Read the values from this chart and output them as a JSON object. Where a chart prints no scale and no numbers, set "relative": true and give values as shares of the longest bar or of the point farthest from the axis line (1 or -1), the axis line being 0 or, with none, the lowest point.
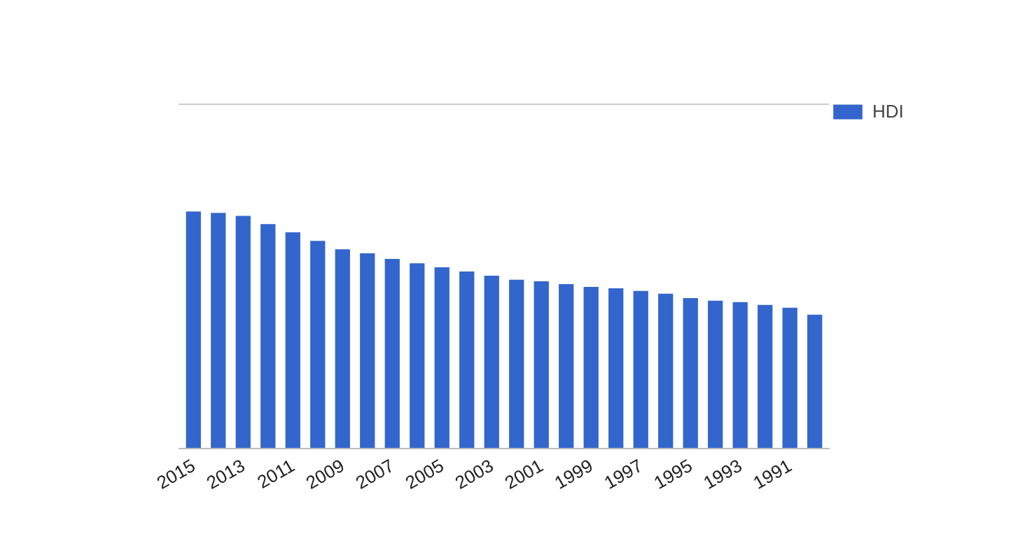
{
  "chart_data": {
    "type": "bar",
    "relative": true,
    "categories": [
      "2015",
      null,
      "2013",
      null,
      "2011",
      null,
      "2009",
      null,
      "2007",
      null,
      "2005",
      null,
      "2003",
      null,
      "2001",
      null,
      "1999",
      null,
      "1997",
      null,
      "1995",
      null,
      "1993",
      null,
      "1991",
      null
    ],
    "series": [
      {
        "name": "HDI",
        "color": "#3366cc",
        "values": [
          1,
          0.994,
          0.982,
          0.947,
          0.912,
          0.876,
          0.841,
          0.824,
          0.8,
          0.782,
          0.765,
          0.747,
          0.729,
          0.712,
          0.706,
          0.694,
          0.682,
          0.676,
          0.665,
          0.653,
          0.635,
          0.624,
          0.618,
          0.606,
          0.594,
          0.565
        ]
      }
    ],
    "legend": "right"
  }
}
